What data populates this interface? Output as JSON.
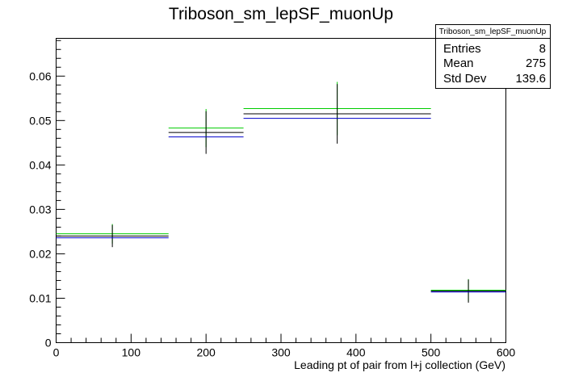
{
  "chart_data": {
    "type": "histogram",
    "title": "Triboson_sm_lepSF_muonUp",
    "xlabel": "Leading pt of pair from l+j collection (GeV)",
    "ylabel": "",
    "xlim": [
      0,
      600
    ],
    "ylim": [
      0,
      0.0685
    ],
    "x_ticks": [
      0,
      100,
      200,
      300,
      400,
      500,
      600
    ],
    "x_tick_labels": [
      "0",
      "100",
      "200",
      "300",
      "400",
      "500",
      "600"
    ],
    "y_ticks": [
      0,
      0.01,
      0.02,
      0.03,
      0.04,
      0.05,
      0.06
    ],
    "y_tick_labels": [
      "0",
      "0.01",
      "0.02",
      "0.03",
      "0.04",
      "0.05",
      "0.06"
    ],
    "bins": [
      {
        "xlow": 0,
        "xhigh": 150,
        "center": 75
      },
      {
        "xlow": 150,
        "xhigh": 250,
        "center": 200
      },
      {
        "xlow": 250,
        "xhigh": 500,
        "center": 375
      },
      {
        "xlow": 500,
        "xhigh": 600,
        "center": 550
      }
    ],
    "series": [
      {
        "color": "#00cc00",
        "values": [
          0.0245,
          0.0483,
          0.0527,
          0.0118
        ],
        "errors": [
          0.0022,
          0.0043,
          0.006,
          0.0025
        ]
      },
      {
        "color": "#000000",
        "values": [
          0.024,
          0.0473,
          0.0515,
          0.0116
        ],
        "errors": [
          0.0025,
          0.0048,
          0.0067,
          0.0026
        ]
      },
      {
        "color": "#0000cc",
        "values": [
          0.0236,
          0.0463,
          0.0505,
          0.0114
        ],
        "errors": [
          0,
          0,
          0,
          0
        ]
      }
    ],
    "stats_box": {
      "title": "Triboson_sm_lepSF_muonUp",
      "rows": [
        {
          "label": "Entries",
          "value": "8"
        },
        {
          "label": "Mean",
          "value": "275"
        },
        {
          "label": "Std Dev",
          "value": "139.6"
        }
      ]
    },
    "grid": false,
    "legend": "none"
  }
}
